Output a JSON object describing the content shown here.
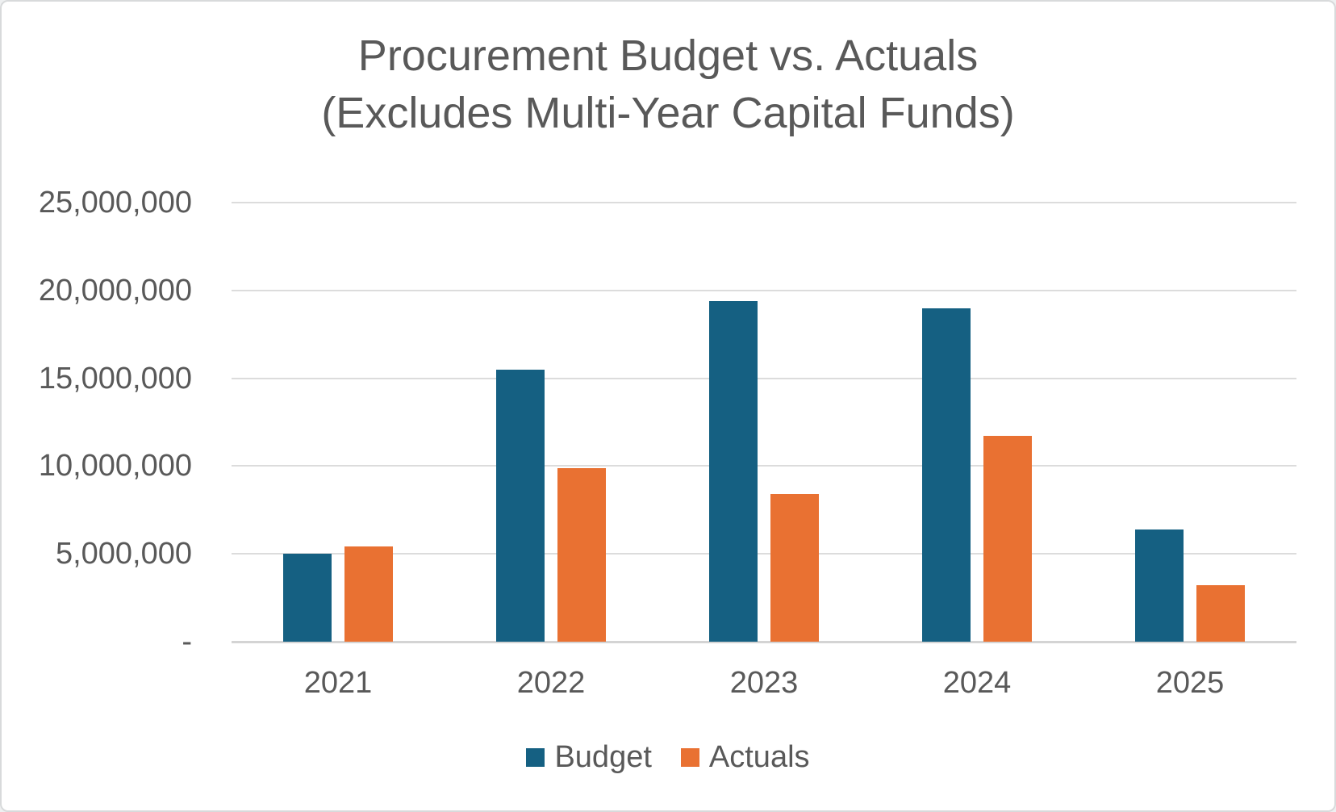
{
  "title": {
    "line1": "Procurement Budget vs. Actuals",
    "line2": "(Excludes Multi-Year Capital Funds)"
  },
  "chart_data": {
    "type": "bar",
    "title": "Procurement Budget vs. Actuals (Excludes Multi-Year Capital Funds)",
    "categories": [
      "2021",
      "2022",
      "2023",
      "2024",
      "2025"
    ],
    "series": [
      {
        "name": "Budget",
        "color": "#156082",
        "values": [
          5000000,
          15500000,
          19400000,
          19000000,
          6400000
        ]
      },
      {
        "name": "Actuals",
        "color": "#E97132",
        "values": [
          5400000,
          9900000,
          8400000,
          11700000,
          3200000
        ]
      }
    ],
    "xlabel": "",
    "ylabel": "",
    "ylim": [
      0,
      25000000
    ],
    "ytick_interval": 5000000,
    "ytick_labels": [
      "-",
      "5,000,000",
      "10,000,000",
      "15,000,000",
      "20,000,000",
      "25,000,000"
    ],
    "grid": true,
    "legend_position": "bottom"
  },
  "colors": {
    "budget": "#156082",
    "actuals": "#E97132",
    "text": "#595959",
    "gridline": "#dcdcdc",
    "axis_line": "#d4d4d4",
    "background": "#ffffff",
    "frame_border": "#d8dadb"
  }
}
